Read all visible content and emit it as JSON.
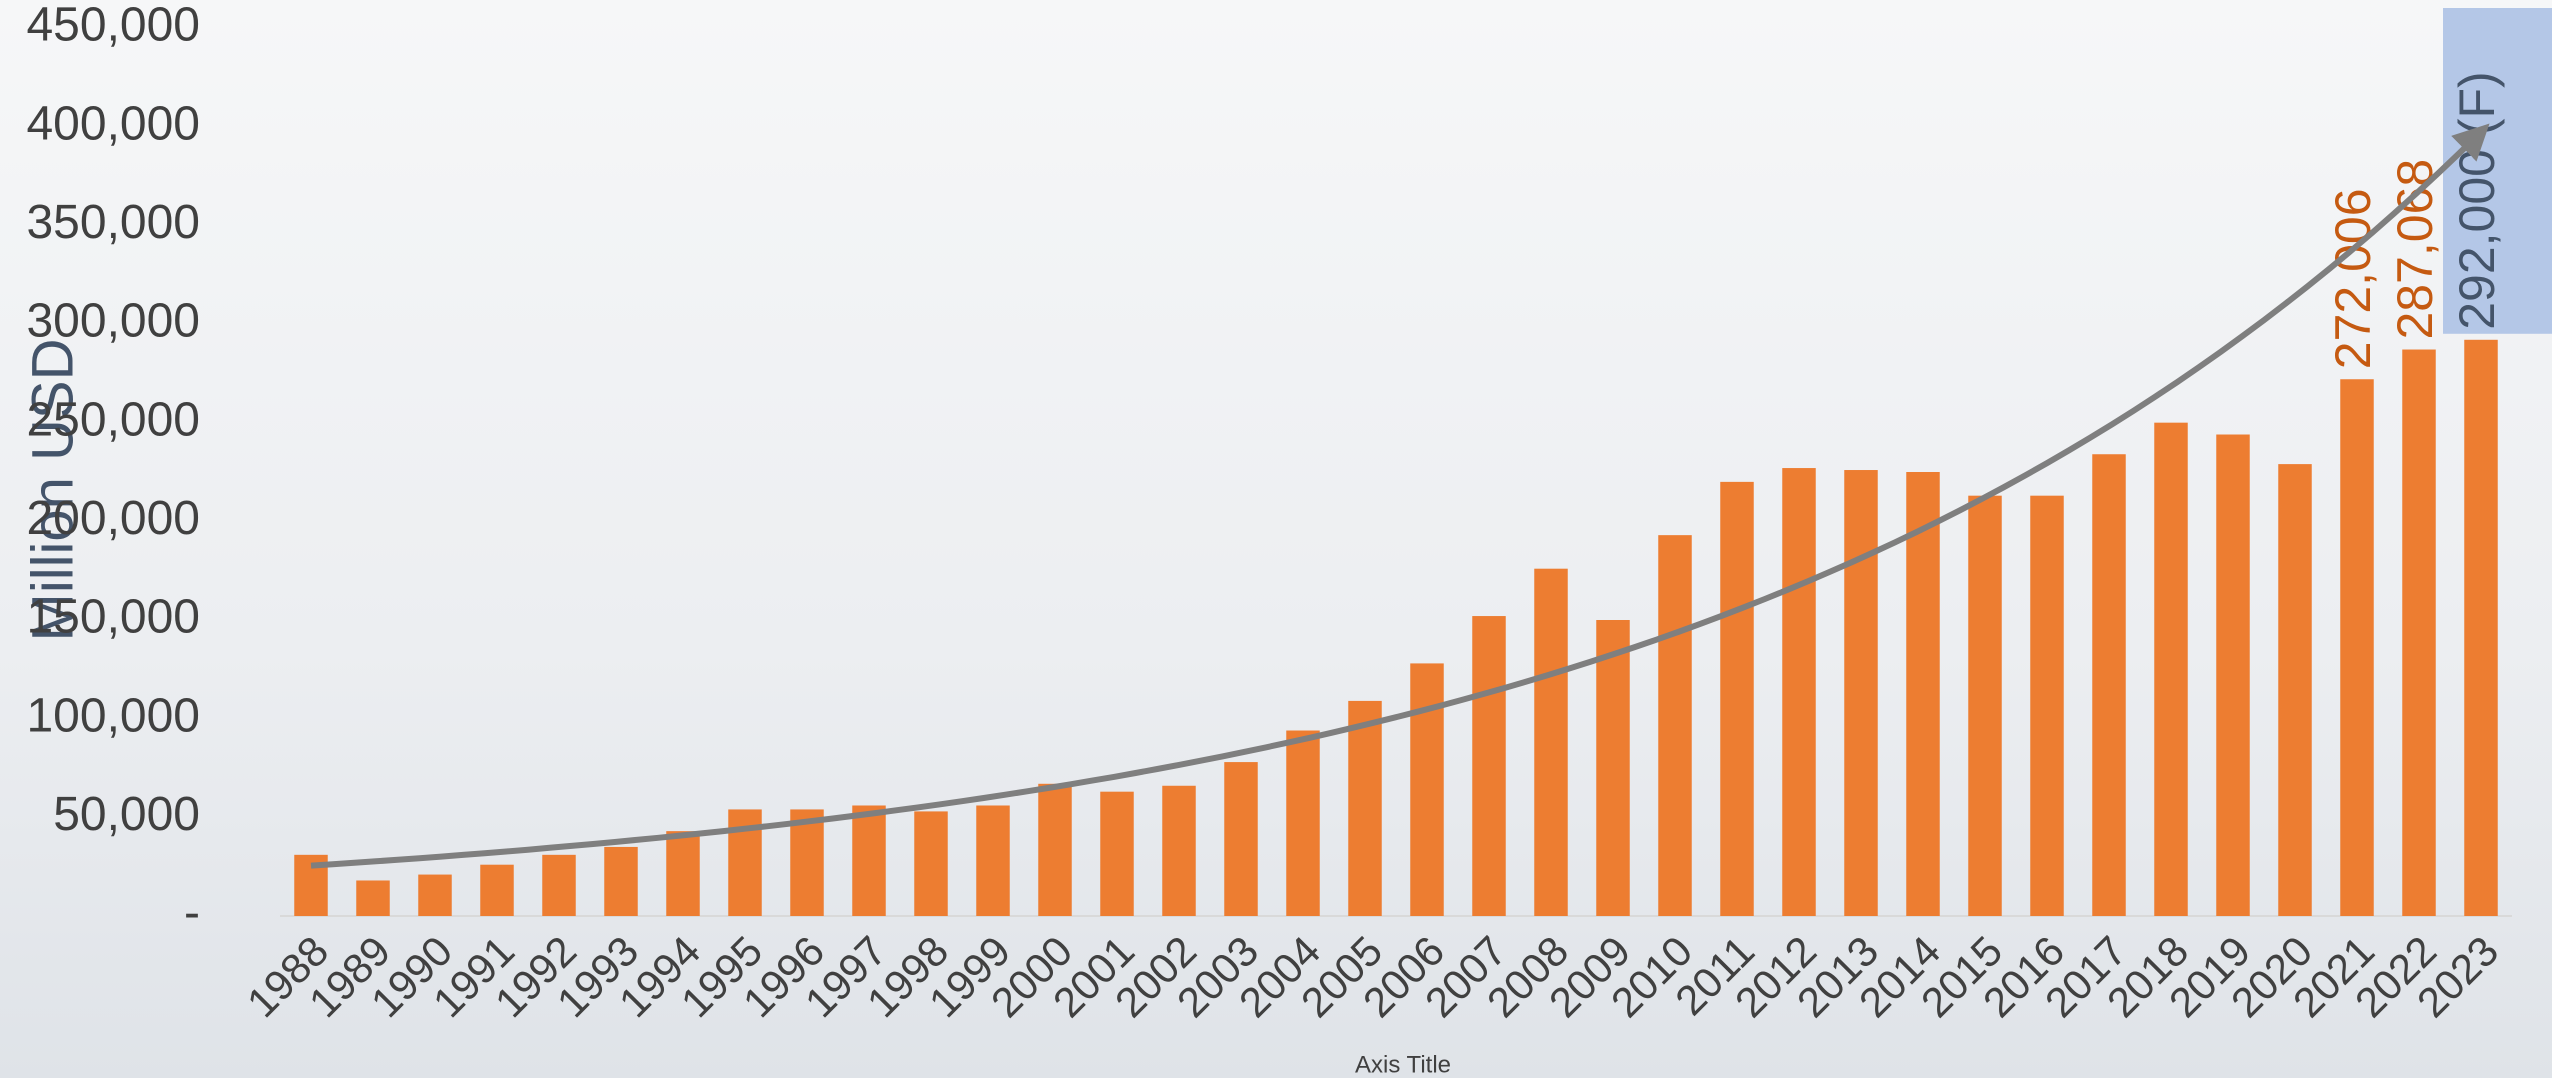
{
  "chart_data": {
    "type": "bar",
    "y_axis_title": "Million USD",
    "x_axis_title": "Axis Title",
    "categories": [
      "1988",
      "1989",
      "1990",
      "1991",
      "1992",
      "1993",
      "1994",
      "1995",
      "1996",
      "1997",
      "1998",
      "1999",
      "2000",
      "2001",
      "2002",
      "2003",
      "2004",
      "2005",
      "2006",
      "2007",
      "2008",
      "2009",
      "2010",
      "2011",
      "2012",
      "2013",
      "2014",
      "2015",
      "2016",
      "2017",
      "2018",
      "2019",
      "2020",
      "2021",
      "2022",
      "2023"
    ],
    "values": [
      31000,
      18000,
      21000,
      26000,
      31000,
      35000,
      43000,
      54000,
      54000,
      56000,
      53000,
      56000,
      67000,
      63000,
      66000,
      78000,
      94000,
      109000,
      128000,
      152000,
      176000,
      150000,
      193000,
      220000,
      227000,
      226000,
      225000,
      213000,
      213000,
      234000,
      250000,
      244000,
      229000,
      272006,
      287068,
      292000
    ],
    "value_labels": [
      null,
      null,
      null,
      null,
      null,
      null,
      null,
      null,
      null,
      null,
      null,
      null,
      null,
      null,
      null,
      null,
      null,
      null,
      null,
      null,
      null,
      null,
      null,
      null,
      null,
      null,
      null,
      null,
      null,
      null,
      null,
      null,
      null,
      "272,006",
      "287,068",
      "292,000 (F)"
    ],
    "color": "#ed7d31",
    "label_color": "#c55a11",
    "forecast_label_color": "#44546a",
    "forecast_label_background": "#b4c7e7",
    "trendline": "exponential",
    "trendline_color": "#7f7f7f",
    "ylim": [
      0,
      450000
    ],
    "yticks": [
      {
        "value": 0,
        "label": "-"
      },
      {
        "value": 50000,
        "label": "50,000"
      },
      {
        "value": 100000,
        "label": "100,000"
      },
      {
        "value": 150000,
        "label": "150,000"
      },
      {
        "value": 200000,
        "label": "200,000"
      },
      {
        "value": 250000,
        "label": "250,000"
      },
      {
        "value": 300000,
        "label": "300,000"
      },
      {
        "value": 350000,
        "label": "350,000"
      },
      {
        "value": 400000,
        "label": "400,000"
      },
      {
        "value": 450000,
        "label": "450,000"
      }
    ],
    "grid": false
  }
}
